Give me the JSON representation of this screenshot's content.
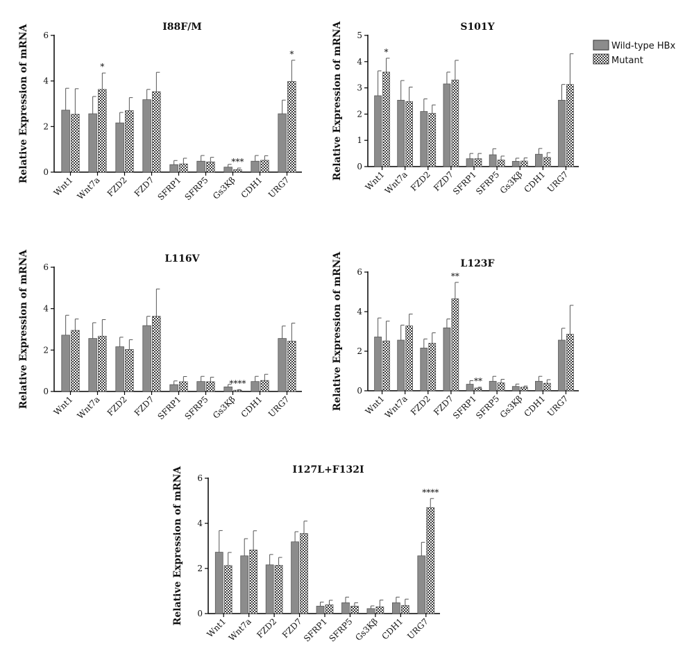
{
  "legend": {
    "items": [
      {
        "label": "Wild-type HBx",
        "pattern": "solid",
        "color": "#8c8c8c"
      },
      {
        "label": "Mutant",
        "pattern": "checker",
        "color": "#3a3a3a"
      }
    ]
  },
  "chart_data": [
    {
      "type": "bar",
      "title": "I88F/M",
      "ylabel": "Relative Expression of mRNA",
      "ylim": [
        0,
        6
      ],
      "yticks": [
        0,
        2,
        4,
        6
      ],
      "categories": [
        "Wnt1",
        "Wnt7a",
        "FZD2",
        "FZD7",
        "SFRP1",
        "SFRP5",
        "Gs3Kβ",
        "CDH1",
        "URG7"
      ],
      "series": [
        {
          "name": "Wild-type HBx",
          "values": [
            2.72,
            2.56,
            2.16,
            3.18,
            0.33,
            0.48,
            0.22,
            0.48,
            2.56
          ],
          "errors": [
            0.96,
            0.76,
            0.46,
            0.45,
            0.18,
            0.25,
            0.12,
            0.25,
            0.6
          ]
        },
        {
          "name": "Mutant",
          "values": [
            2.54,
            3.63,
            2.7,
            3.53,
            0.36,
            0.45,
            0.11,
            0.52,
            3.98
          ],
          "errors": [
            1.12,
            0.72,
            0.57,
            0.85,
            0.25,
            0.2,
            0.07,
            0.2,
            0.93
          ]
        }
      ],
      "significance": [
        {
          "category": "Wnt7a",
          "label": "*"
        },
        {
          "category": "Gs3Kβ",
          "label": "***"
        },
        {
          "category": "URG7",
          "label": "*"
        }
      ]
    },
    {
      "type": "bar",
      "title": "S101Y",
      "ylabel": "Relative Expression of mRNA",
      "ylim": [
        0,
        5
      ],
      "yticks": [
        0,
        1,
        2,
        3,
        4,
        5
      ],
      "categories": [
        "Wnt1",
        "Wnt7a",
        "FZD2",
        "FZD7",
        "SFRP1",
        "SFRP5",
        "Gs3Kβ",
        "CDH1",
        "URG7"
      ],
      "series": [
        {
          "name": "Wild-type HBx",
          "values": [
            2.7,
            2.53,
            2.1,
            3.15,
            0.3,
            0.45,
            0.2,
            0.47,
            2.53
          ],
          "errors": [
            0.95,
            0.75,
            0.48,
            0.45,
            0.2,
            0.23,
            0.12,
            0.22,
            0.6
          ]
        },
        {
          "name": "Mutant",
          "values": [
            3.6,
            2.48,
            2.03,
            3.3,
            0.3,
            0.25,
            0.21,
            0.35,
            3.13
          ],
          "errors": [
            0.53,
            0.55,
            0.32,
            0.75,
            0.2,
            0.15,
            0.12,
            0.18,
            1.17
          ]
        }
      ],
      "significance": [
        {
          "category": "Wnt1",
          "label": "*"
        }
      ]
    },
    {
      "type": "bar",
      "title": "L116V",
      "ylabel": "Relative Expression of mRNA",
      "ylim": [
        0,
        6
      ],
      "yticks": [
        0,
        2,
        4,
        6
      ],
      "categories": [
        "Wnt1",
        "Wnt7a",
        "FZD2",
        "FZD7",
        "SFRP1",
        "SFRP5",
        "Gs3Kβ",
        "CDH1",
        "URG7"
      ],
      "series": [
        {
          "name": "Wild-type HBx",
          "values": [
            2.72,
            2.56,
            2.16,
            3.18,
            0.33,
            0.48,
            0.22,
            0.48,
            2.56
          ],
          "errors": [
            0.96,
            0.76,
            0.46,
            0.45,
            0.18,
            0.25,
            0.12,
            0.25,
            0.6
          ]
        },
        {
          "name": "Mutant",
          "values": [
            2.95,
            2.67,
            2.03,
            3.63,
            0.47,
            0.47,
            0.06,
            0.53,
            2.43
          ],
          "errors": [
            0.55,
            0.8,
            0.47,
            1.32,
            0.25,
            0.22,
            0.03,
            0.3,
            0.87
          ]
        }
      ],
      "significance": [
        {
          "category": "Gs3Kβ",
          "label": "****"
        }
      ]
    },
    {
      "type": "bar",
      "title": "L123F",
      "ylabel": "Relative Expression of mRNA",
      "ylim": [
        0,
        6
      ],
      "yticks": [
        0,
        2,
        4,
        6
      ],
      "categories": [
        "Wnt1",
        "Wnt7a",
        "FZD2",
        "FZD7",
        "SFRP1",
        "SFRP5",
        "Gs3Kβ",
        "CDH1",
        "URG7"
      ],
      "series": [
        {
          "name": "Wild-type HBx",
          "values": [
            2.72,
            2.56,
            2.16,
            3.18,
            0.33,
            0.48,
            0.22,
            0.48,
            2.56
          ],
          "errors": [
            0.96,
            0.76,
            0.46,
            0.45,
            0.18,
            0.25,
            0.12,
            0.25,
            0.6
          ]
        },
        {
          "name": "Mutant",
          "values": [
            2.52,
            3.28,
            2.4,
            4.65,
            0.14,
            0.4,
            0.18,
            0.38,
            2.86
          ],
          "errors": [
            1.0,
            0.6,
            0.53,
            0.83,
            0.04,
            0.18,
            0.06,
            0.18,
            1.46
          ]
        }
      ],
      "significance": [
        {
          "category": "FZD7",
          "label": "**"
        },
        {
          "category": "SFRP1",
          "label": "**"
        }
      ]
    },
    {
      "type": "bar",
      "title": "I127L+F132I",
      "ylabel": "Relative Expression of mRNA",
      "ylim": [
        0,
        6
      ],
      "yticks": [
        0,
        2,
        4,
        6
      ],
      "categories": [
        "Wnt1",
        "Wnt7a",
        "FZD2",
        "FZD7",
        "SFRP1",
        "SFRP5",
        "Gs3Kβ",
        "CDH1",
        "URG7"
      ],
      "series": [
        {
          "name": "Wild-type HBx",
          "values": [
            2.72,
            2.56,
            2.16,
            3.18,
            0.33,
            0.48,
            0.22,
            0.48,
            2.56
          ],
          "errors": [
            0.96,
            0.76,
            0.46,
            0.45,
            0.18,
            0.25,
            0.12,
            0.25,
            0.6
          ]
        },
        {
          "name": "Mutant",
          "values": [
            2.13,
            2.82,
            2.14,
            3.55,
            0.39,
            0.33,
            0.3,
            0.36,
            4.7
          ],
          "errors": [
            0.58,
            0.85,
            0.35,
            0.55,
            0.2,
            0.15,
            0.3,
            0.28,
            0.4
          ]
        }
      ],
      "significance": [
        {
          "category": "URG7",
          "label": "****"
        }
      ]
    }
  ]
}
